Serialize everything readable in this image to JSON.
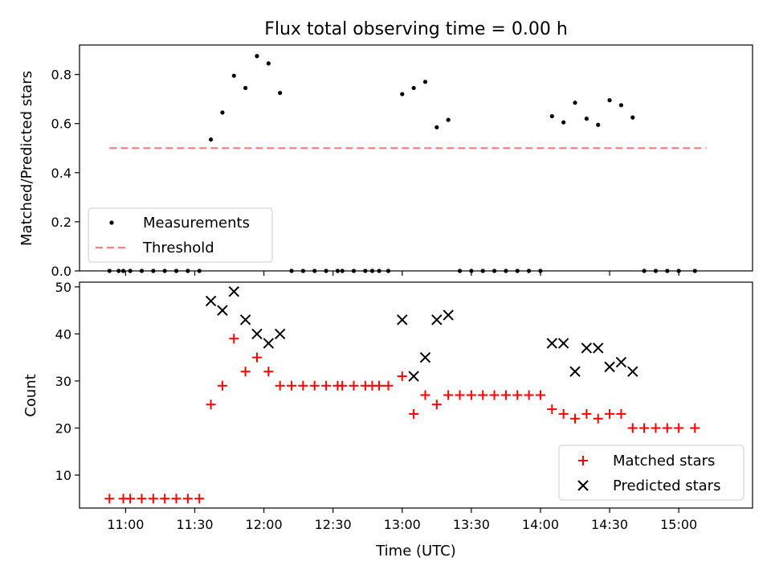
{
  "chart_data": [
    {
      "type": "scatter",
      "title": "Flux total observing time = 0.00 h",
      "xlabel": "",
      "ylabel": "Matched/Predicted stars",
      "xlim": [
        "10:40",
        "15:32"
      ],
      "ylim": [
        0,
        0.92
      ],
      "yticks": [
        "0.0",
        "0.2",
        "0.4",
        "0.6",
        "0.8"
      ],
      "grid": false,
      "legend_position": "lower-left",
      "legend": [
        "Measurements",
        "Threshold"
      ],
      "threshold": {
        "name": "Threshold",
        "value": 0.5,
        "x_start": "10:53",
        "x_end": "15:12",
        "color": "#ff8080"
      },
      "series": [
        {
          "name": "Measurements",
          "color": "#000000",
          "x": [
            "10:53",
            "10:57",
            "10:59",
            "11:02",
            "11:07",
            "11:12",
            "11:17",
            "11:22",
            "11:27",
            "11:32",
            "11:37",
            "11:42",
            "11:47",
            "11:52",
            "11:57",
            "12:02",
            "12:07",
            "12:12",
            "12:17",
            "12:22",
            "12:27",
            "12:32",
            "12:34",
            "12:39",
            "12:44",
            "12:47",
            "12:50",
            "12:54",
            "13:00",
            "13:05",
            "13:10",
            "13:15",
            "13:20",
            "13:25",
            "13:30",
            "13:35",
            "13:40",
            "13:45",
            "13:50",
            "13:55",
            "14:00",
            "14:05",
            "14:10",
            "14:15",
            "14:20",
            "14:25",
            "14:30",
            "14:35",
            "14:40",
            "14:45",
            "14:50",
            "14:55",
            "15:00",
            "15:07"
          ],
          "y": [
            0,
            0,
            0,
            0,
            0,
            0,
            0,
            0,
            0,
            0,
            0.535,
            0.645,
            0.795,
            0.745,
            0.875,
            0.845,
            0.725,
            0,
            0,
            0,
            0,
            0,
            0,
            0,
            0,
            0,
            0,
            0,
            0.72,
            0.745,
            0.77,
            0.585,
            0.615,
            0,
            0,
            0,
            0,
            0,
            0,
            0,
            0,
            0.63,
            0.605,
            0.685,
            0.62,
            0.595,
            0.695,
            0.675,
            0.625,
            0,
            0,
            0,
            0,
            0
          ]
        }
      ]
    },
    {
      "type": "scatter",
      "title": "",
      "xlabel": "Time (UTC)",
      "ylabel": "Count",
      "xlim": [
        "10:40",
        "15:32"
      ],
      "ylim": [
        3,
        51
      ],
      "xticks": [
        "11:00",
        "11:30",
        "12:00",
        "12:30",
        "13:00",
        "13:30",
        "14:00",
        "14:30",
        "15:00"
      ],
      "yticks": [
        "10",
        "20",
        "30",
        "40",
        "50"
      ],
      "grid": false,
      "legend_position": "lower-right",
      "legend": [
        "Matched stars",
        "Predicted stars"
      ],
      "series": [
        {
          "name": "Matched stars",
          "marker": "plus",
          "color": "#ff0000",
          "x": [
            "10:53",
            "10:59",
            "11:02",
            "11:07",
            "11:12",
            "11:17",
            "11:22",
            "11:27",
            "11:32",
            "11:37",
            "11:42",
            "11:47",
            "11:52",
            "11:57",
            "12:02",
            "12:07",
            "12:12",
            "12:17",
            "12:22",
            "12:27",
            "12:32",
            "12:34",
            "12:39",
            "12:44",
            "12:47",
            "12:50",
            "12:54",
            "13:00",
            "13:05",
            "13:10",
            "13:15",
            "13:20",
            "13:25",
            "13:30",
            "13:35",
            "13:40",
            "13:45",
            "13:50",
            "13:55",
            "14:00",
            "14:05",
            "14:10",
            "14:15",
            "14:20",
            "14:25",
            "14:30",
            "14:35",
            "14:40",
            "14:45",
            "14:50",
            "14:55",
            "15:00",
            "15:07"
          ],
          "y": [
            5,
            5,
            5,
            5,
            5,
            5,
            5,
            5,
            5,
            25,
            29,
            39,
            32,
            35,
            32,
            29,
            29,
            29,
            29,
            29,
            29,
            29,
            29,
            29,
            29,
            29,
            29,
            31,
            23,
            27,
            25,
            27,
            27,
            27,
            27,
            27,
            27,
            27,
            27,
            27,
            24,
            23,
            22,
            23,
            22,
            23,
            23,
            20,
            20,
            20,
            20,
            20,
            20
          ]
        },
        {
          "name": "Predicted stars",
          "marker": "x",
          "color": "#000000",
          "x": [
            "11:37",
            "11:42",
            "11:47",
            "11:52",
            "11:57",
            "12:02",
            "12:07",
            "13:00",
            "13:05",
            "13:10",
            "13:15",
            "13:20",
            "14:05",
            "14:10",
            "14:15",
            "14:20",
            "14:25",
            "14:30",
            "14:35",
            "14:40"
          ],
          "y": [
            47,
            45,
            49,
            43,
            40,
            38,
            40,
            43,
            31,
            35,
            43,
            44,
            38,
            38,
            32,
            37,
            37,
            33,
            34,
            32
          ]
        }
      ]
    }
  ]
}
